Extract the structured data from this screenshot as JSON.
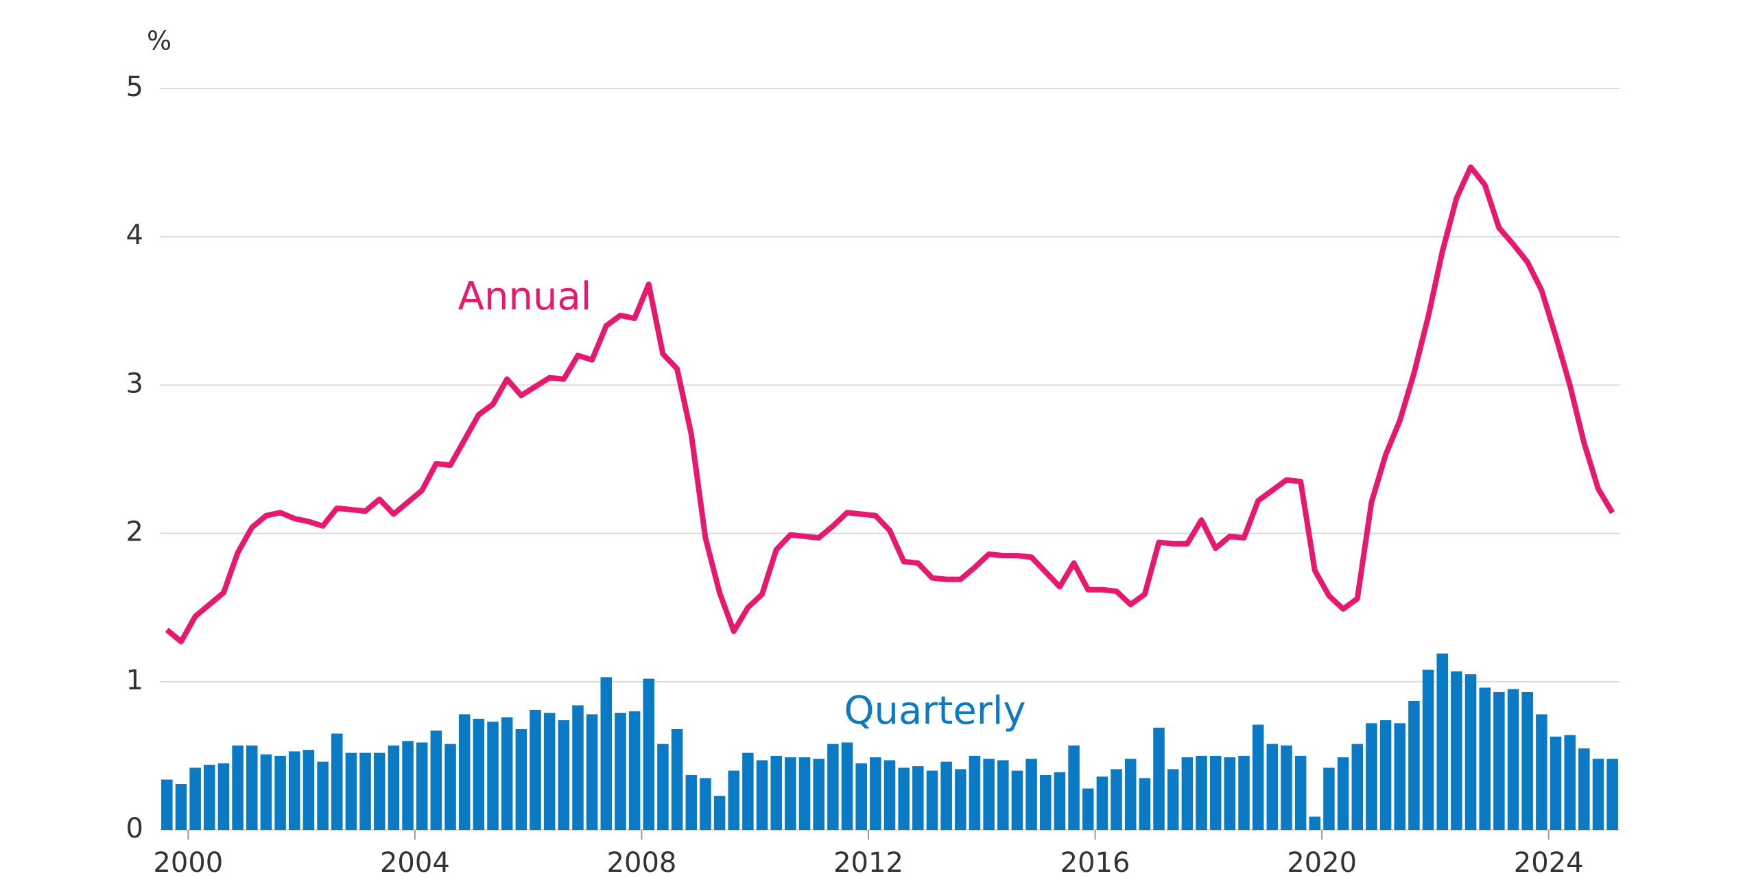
{
  "chart_data": {
    "type": "combo",
    "y_label": "%",
    "x": [
      1999.5,
      1999.75,
      2000,
      2000.25,
      2000.5,
      2000.75,
      2001,
      2001.25,
      2001.5,
      2001.75,
      2002,
      2002.25,
      2002.5,
      2002.75,
      2003,
      2003.25,
      2003.5,
      2003.75,
      2004,
      2004.25,
      2004.5,
      2004.75,
      2005,
      2005.25,
      2005.5,
      2005.75,
      2006,
      2006.25,
      2006.5,
      2006.75,
      2007,
      2007.25,
      2007.5,
      2007.75,
      2008,
      2008.25,
      2008.5,
      2008.75,
      2009,
      2009.25,
      2009.5,
      2009.75,
      2010,
      2010.25,
      2010.5,
      2010.75,
      2011,
      2011.25,
      2011.5,
      2011.75,
      2012,
      2012.25,
      2012.5,
      2012.75,
      2013,
      2013.25,
      2013.5,
      2013.75,
      2014,
      2014.25,
      2014.5,
      2014.75,
      2015,
      2015.25,
      2015.5,
      2015.75,
      2016,
      2016.25,
      2016.5,
      2016.75,
      2017,
      2017.25,
      2017.5,
      2017.75,
      2018,
      2018.25,
      2018.5,
      2018.75,
      2019,
      2019.25,
      2019.5,
      2019.75,
      2020,
      2020.25,
      2020.5,
      2020.75,
      2021,
      2021.25,
      2021.5,
      2021.75,
      2022,
      2022.25,
      2022.5,
      2022.75,
      2023,
      2023.25,
      2023.5,
      2023.75,
      2024,
      2024.25,
      2024.5,
      2024.75,
      2025
    ],
    "series": [
      {
        "name": "Quarterly",
        "type": "bar",
        "color": "#0a7ac4",
        "values": [
          0.34,
          0.31,
          0.42,
          0.44,
          0.45,
          0.57,
          0.57,
          0.51,
          0.5,
          0.53,
          0.54,
          0.46,
          0.65,
          0.52,
          0.52,
          0.52,
          0.57,
          0.6,
          0.59,
          0.67,
          0.58,
          0.78,
          0.75,
          0.73,
          0.76,
          0.68,
          0.81,
          0.79,
          0.74,
          0.84,
          0.78,
          1.03,
          0.79,
          0.8,
          1.02,
          0.58,
          0.68,
          0.37,
          0.35,
          0.23,
          0.4,
          0.52,
          0.47,
          0.5,
          0.49,
          0.49,
          0.48,
          0.58,
          0.59,
          0.45,
          0.49,
          0.47,
          0.42,
          0.43,
          0.4,
          0.46,
          0.41,
          0.5,
          0.48,
          0.47,
          0.4,
          0.48,
          0.37,
          0.39,
          0.57,
          0.28,
          0.36,
          0.41,
          0.48,
          0.35,
          0.69,
          0.41,
          0.49,
          0.5,
          0.5,
          0.49,
          0.5,
          0.71,
          0.58,
          0.57,
          0.5,
          0.09,
          0.42,
          0.49,
          0.58,
          0.72,
          0.74,
          0.72,
          0.87,
          1.08,
          1.19,
          1.07,
          1.05,
          0.96,
          0.93,
          0.95,
          0.93,
          0.78,
          0.63,
          0.64,
          0.55,
          0.48,
          0.48
        ]
      },
      {
        "name": "Annual",
        "type": "line",
        "color": "#e6196e",
        "values": [
          1.35,
          1.27,
          1.44,
          1.52,
          1.6,
          1.87,
          2.04,
          2.12,
          2.14,
          2.1,
          2.08,
          2.05,
          2.17,
          2.16,
          2.15,
          2.23,
          2.13,
          2.21,
          2.29,
          2.47,
          2.46,
          2.63,
          2.8,
          2.87,
          3.04,
          2.93,
          2.99,
          3.05,
          3.04,
          3.2,
          3.17,
          3.4,
          3.47,
          3.45,
          3.68,
          3.21,
          3.11,
          2.67,
          1.97,
          1.6,
          1.34,
          1.5,
          1.59,
          1.89,
          1.99,
          1.98,
          1.97,
          2.05,
          2.14,
          2.13,
          2.12,
          2.02,
          1.81,
          1.8,
          1.7,
          1.69,
          1.69,
          1.77,
          1.86,
          1.85,
          1.85,
          1.84,
          1.74,
          1.64,
          1.8,
          1.62,
          1.62,
          1.61,
          1.52,
          1.59,
          1.94,
          1.93,
          1.93,
          2.09,
          1.9,
          1.98,
          1.97,
          2.22,
          2.29,
          2.36,
          2.35,
          1.75,
          1.58,
          1.49,
          1.56,
          2.21,
          2.53,
          2.76,
          3.08,
          3.46,
          3.9,
          4.26,
          4.47,
          4.35,
          4.06,
          3.95,
          3.83,
          3.64,
          3.33,
          3.0,
          2.61,
          2.3,
          2.14
        ]
      }
    ],
    "xlim": [
      1999.5,
      2025.25
    ],
    "xticks": [
      2000,
      2004,
      2008,
      2012,
      2016,
      2020,
      2024
    ],
    "ylim": [
      0,
      5
    ],
    "yticks": [
      0,
      1,
      2,
      3,
      4,
      5
    ],
    "grid": true
  }
}
